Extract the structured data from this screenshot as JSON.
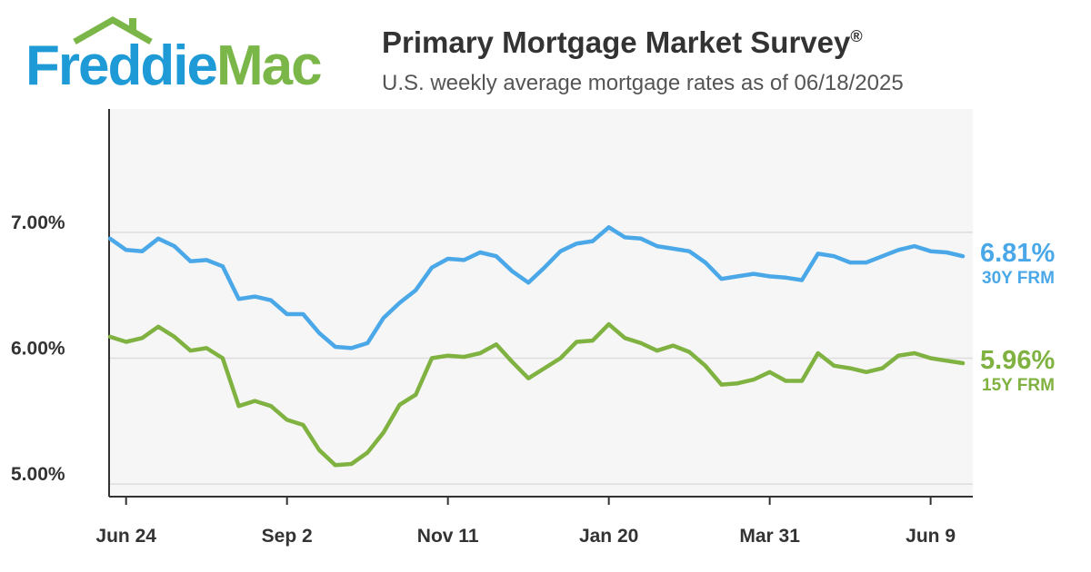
{
  "header": {
    "logo_part1": "Freddie",
    "logo_part2": "Mac",
    "title": "Primary Mortgage Market Survey",
    "title_mark": "®",
    "subtitle": "U.S. weekly average mortgage rates as of 06/18/2025"
  },
  "colors": {
    "brand_blue": "#1e9ad6",
    "brand_green": "#7ab648",
    "series_30y": "#4ba8e8",
    "series_15y": "#7fb241",
    "plot_bg": "#f6f6f6",
    "grid": "#dddddd"
  },
  "chart_data": {
    "type": "line",
    "title": "Primary Mortgage Market Survey",
    "xlabel": "",
    "ylabel": "",
    "ylim": [
      4.9,
      7.98
    ],
    "grid": true,
    "legend": "right-end-labels",
    "y_ticks": [
      {
        "value": 7.0,
        "label": "7.00%"
      },
      {
        "value": 6.0,
        "label": "6.00%"
      },
      {
        "value": 5.0,
        "label": "5.00%"
      }
    ],
    "x_ticks": [
      {
        "index": 1,
        "label": "Jun 24"
      },
      {
        "index": 11,
        "label": "Sep 2"
      },
      {
        "index": 21,
        "label": "Nov 11"
      },
      {
        "index": 31,
        "label": "Jan 20"
      },
      {
        "index": 41,
        "label": "Mar 31"
      },
      {
        "index": 51,
        "label": "Jun 9"
      }
    ],
    "series": [
      {
        "name": "30Y FRM",
        "end_label": "6.81%",
        "values": [
          6.95,
          6.86,
          6.85,
          6.95,
          6.89,
          6.77,
          6.78,
          6.73,
          6.47,
          6.49,
          6.46,
          6.35,
          6.35,
          6.2,
          6.09,
          6.08,
          6.12,
          6.32,
          6.44,
          6.54,
          6.72,
          6.79,
          6.78,
          6.84,
          6.81,
          6.69,
          6.6,
          6.72,
          6.85,
          6.91,
          6.93,
          7.04,
          6.96,
          6.95,
          6.89,
          6.87,
          6.85,
          6.76,
          6.63,
          6.65,
          6.67,
          6.65,
          6.64,
          6.62,
          6.83,
          6.81,
          6.76,
          6.76,
          6.81,
          6.86,
          6.89,
          6.85,
          6.84,
          6.81
        ]
      },
      {
        "name": "15Y FRM",
        "end_label": "5.96%",
        "values": [
          6.17,
          6.13,
          6.16,
          6.25,
          6.17,
          6.06,
          6.08,
          6.0,
          5.62,
          5.66,
          5.62,
          5.51,
          5.47,
          5.27,
          5.15,
          5.16,
          5.25,
          5.41,
          5.63,
          5.71,
          6.0,
          6.02,
          6.01,
          6.04,
          6.11,
          5.97,
          5.84,
          5.92,
          6.0,
          6.13,
          6.14,
          6.27,
          6.16,
          6.12,
          6.06,
          6.1,
          6.05,
          5.94,
          5.79,
          5.8,
          5.83,
          5.89,
          5.82,
          5.82,
          6.04,
          5.94,
          5.92,
          5.89,
          5.92,
          6.02,
          6.04,
          6.0,
          5.98,
          5.96
        ]
      }
    ]
  }
}
